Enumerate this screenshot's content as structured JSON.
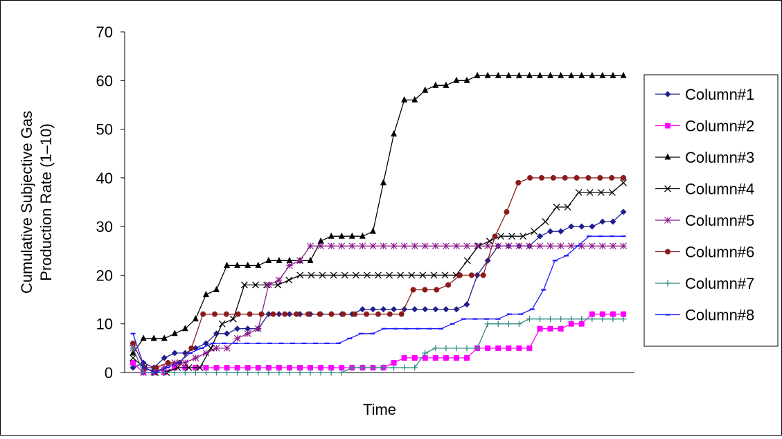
{
  "chart_data": {
    "type": "line",
    "title": "",
    "xlabel": "Time",
    "ylabel_lines": [
      "Cumulative Subjective Gas",
      "Production Rate (1–10)"
    ],
    "ylim": [
      0,
      70
    ],
    "yticks": [
      "0",
      "10",
      "20",
      "30",
      "40",
      "50",
      "60",
      "70"
    ],
    "grid": false,
    "legend_position": "right",
    "series": [
      {
        "name": "Column#1",
        "color": "#1f1f8f",
        "marker": "diamond",
        "values": [
          1,
          2,
          1,
          3,
          4,
          4,
          5,
          6,
          8,
          8,
          9,
          9,
          9,
          12,
          12,
          12,
          12,
          12,
          12,
          12,
          12,
          12,
          13,
          13,
          13,
          13,
          13,
          13,
          13,
          13,
          13,
          13,
          14,
          20,
          23,
          26,
          26,
          26,
          26,
          28,
          29,
          29,
          30,
          30,
          30,
          31,
          31,
          33
        ]
      },
      {
        "name": "Column#2",
        "color": "#ff00ff",
        "marker": "square",
        "values": [
          2,
          0,
          0,
          0,
          1,
          1,
          1,
          1,
          1,
          1,
          1,
          1,
          1,
          1,
          1,
          1,
          1,
          1,
          1,
          1,
          1,
          1,
          1,
          1,
          1,
          2,
          3,
          3,
          3,
          3,
          3,
          3,
          3,
          5,
          5,
          5,
          5,
          5,
          5,
          9,
          9,
          9,
          10,
          10,
          12,
          12,
          12,
          12
        ]
      },
      {
        "name": "Column#3",
        "color": "#000000",
        "marker": "triangle",
        "values": [
          4,
          7,
          7,
          7,
          8,
          9,
          11,
          16,
          17,
          22,
          22,
          22,
          22,
          23,
          23,
          23,
          23,
          23,
          27,
          28,
          28,
          28,
          28,
          29,
          39,
          49,
          56,
          56,
          58,
          59,
          59,
          60,
          60,
          61,
          61,
          61,
          61,
          61,
          61,
          61,
          61,
          61,
          61,
          61,
          61,
          61,
          61,
          61
        ]
      },
      {
        "name": "Column#4",
        "color": "#000000",
        "marker": "x",
        "values": [
          3,
          1,
          0,
          0,
          1,
          1,
          1,
          5,
          10,
          11,
          18,
          18,
          18,
          18,
          19,
          20,
          20,
          20,
          20,
          20,
          20,
          20,
          20,
          20,
          20,
          20,
          20,
          20,
          20,
          20,
          23,
          26,
          27,
          28,
          28,
          28,
          29,
          31,
          34,
          34,
          37,
          37,
          37,
          37,
          39
        ]
      },
      {
        "name": "Column#5",
        "color": "#8b1a8b",
        "marker": "star",
        "values": [
          5,
          0,
          0,
          1,
          2,
          2,
          3,
          4,
          5,
          5,
          7,
          8,
          9,
          18,
          19,
          22,
          23,
          26,
          26,
          26,
          26,
          26,
          26,
          26,
          26,
          26,
          26,
          26,
          26,
          26,
          26,
          26,
          26,
          26,
          26,
          26,
          26,
          26,
          26,
          26,
          26,
          26,
          26,
          26,
          26,
          26,
          26,
          26
        ]
      },
      {
        "name": "Column#6",
        "color": "#8b1a1a",
        "marker": "circle",
        "values": [
          6,
          1,
          1,
          2,
          2,
          5,
          12,
          12,
          12,
          12,
          12,
          12,
          12,
          12,
          12,
          12,
          12,
          12,
          12,
          12,
          12,
          12,
          12,
          12,
          17,
          17,
          17,
          18,
          20,
          20,
          20,
          28,
          33,
          39,
          40,
          40,
          40,
          40,
          40,
          40,
          40,
          40,
          40
        ]
      },
      {
        "name": "Column#7",
        "color": "#2e8b7f",
        "marker": "plus",
        "values": [
          5,
          0,
          0,
          0,
          0,
          0,
          0,
          0,
          0,
          0,
          0,
          0,
          0,
          0,
          0,
          0,
          0,
          0,
          0,
          0,
          0,
          1,
          1,
          1,
          1,
          1,
          1,
          1,
          4,
          5,
          5,
          5,
          5,
          5,
          10,
          10,
          10,
          10,
          11,
          11,
          11,
          11,
          11,
          11,
          11,
          11,
          11,
          11
        ]
      },
      {
        "name": "Column#8",
        "color": "#1a1aff",
        "marker": "dash",
        "values": [
          8,
          1,
          0,
          1,
          2,
          4,
          5,
          6,
          6,
          6,
          6,
          6,
          6,
          6,
          6,
          6,
          6,
          6,
          6,
          7,
          8,
          8,
          9,
          9,
          9,
          9,
          9,
          9,
          10,
          11,
          11,
          11,
          11,
          12,
          12,
          13,
          17,
          23,
          24,
          26,
          28,
          28,
          28,
          28
        ]
      }
    ]
  }
}
